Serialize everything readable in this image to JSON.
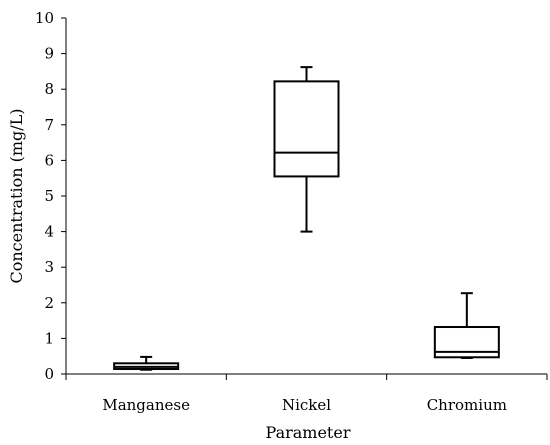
{
  "chart_data": {
    "type": "box",
    "title": "",
    "xlabel": "Parameter",
    "ylabel": "Concentration (mg/L)",
    "ylim": [
      0,
      10
    ],
    "yticks": [
      0,
      1,
      2,
      3,
      4,
      5,
      6,
      7,
      8,
      9,
      10
    ],
    "grid": false,
    "legend": "none",
    "categories": [
      "Manganese",
      "Nickel",
      "Chromium"
    ],
    "boxes": [
      {
        "category": "Manganese",
        "min": 0.12,
        "q1": 0.14,
        "median": 0.2,
        "q3": 0.3,
        "max": 0.48
      },
      {
        "category": "Nickel",
        "min": 4.0,
        "q1": 5.55,
        "median": 6.22,
        "q3": 8.22,
        "max": 8.62
      },
      {
        "category": "Chromium",
        "min": 0.45,
        "q1": 0.47,
        "median": 0.62,
        "q3": 1.32,
        "max": 2.27
      }
    ],
    "colors": {
      "box_stroke": "#000000",
      "box_fill": "#ffffff",
      "axis": "#000000"
    }
  }
}
